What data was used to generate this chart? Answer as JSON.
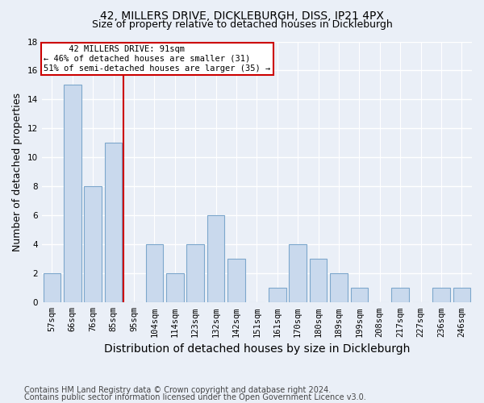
{
  "title_line1": "42, MILLERS DRIVE, DICKLEBURGH, DISS, IP21 4PX",
  "title_line2": "Size of property relative to detached houses in Dickleburgh",
  "xlabel": "Distribution of detached houses by size in Dickleburgh",
  "ylabel": "Number of detached properties",
  "footnote1": "Contains HM Land Registry data © Crown copyright and database right 2024.",
  "footnote2": "Contains public sector information licensed under the Open Government Licence v3.0.",
  "categories": [
    "57sqm",
    "66sqm",
    "76sqm",
    "85sqm",
    "95sqm",
    "104sqm",
    "114sqm",
    "123sqm",
    "132sqm",
    "142sqm",
    "151sqm",
    "161sqm",
    "170sqm",
    "180sqm",
    "189sqm",
    "199sqm",
    "208sqm",
    "217sqm",
    "227sqm",
    "236sqm",
    "246sqm"
  ],
  "values": [
    2,
    15,
    8,
    11,
    0,
    4,
    2,
    4,
    6,
    3,
    0,
    1,
    4,
    3,
    2,
    1,
    0,
    1,
    0,
    1,
    1
  ],
  "bar_color": "#c9d9ed",
  "bar_edge_color": "#7da7cc",
  "vline_color": "#cc0000",
  "annotation_line1": "     42 MILLERS DRIVE: 91sqm",
  "annotation_line2": "← 46% of detached houses are smaller (31)",
  "annotation_line3": "51% of semi-detached houses are larger (35) →",
  "annotation_box_edgecolor": "#cc0000",
  "annotation_fontsize": 7.5,
  "ylim": [
    0,
    18
  ],
  "yticks": [
    0,
    2,
    4,
    6,
    8,
    10,
    12,
    14,
    16,
    18
  ],
  "bg_color": "#eaeff7",
  "plot_bg_color": "#eaeff7",
  "grid_color": "#ffffff",
  "title_fontsize": 10,
  "subtitle_fontsize": 9,
  "axis_label_fontsize": 9,
  "xlabel_fontsize": 10,
  "tick_fontsize": 7.5
}
